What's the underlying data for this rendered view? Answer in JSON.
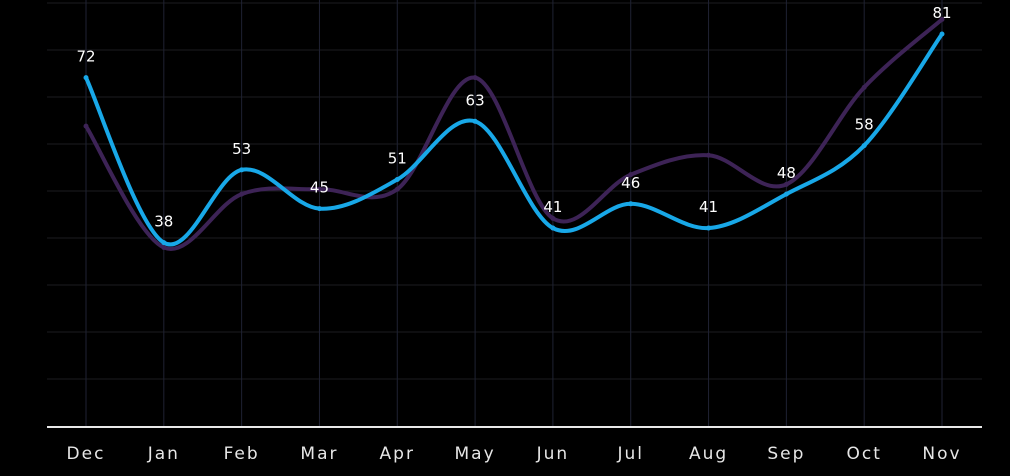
{
  "chart_data": {
    "type": "line",
    "categories": [
      "Dec",
      "Jan",
      "Feb",
      "Mar",
      "Apr",
      "May",
      "Jun",
      "Jul",
      "Aug",
      "Sep",
      "Oct",
      "Nov"
    ],
    "series": [
      {
        "values": [
          72,
          38,
          53,
          45,
          51,
          63,
          41,
          46,
          41,
          48,
          58,
          81
        ],
        "color": "#18a8e8",
        "labeled": true
      },
      {
        "values": [
          62,
          37,
          48,
          49,
          49,
          72,
          43,
          52,
          56,
          50,
          70,
          84
        ],
        "color": "#3d2356",
        "labeled": false
      }
    ],
    "ylim": [
      0,
      88
    ],
    "grid": true,
    "legend": "none"
  }
}
